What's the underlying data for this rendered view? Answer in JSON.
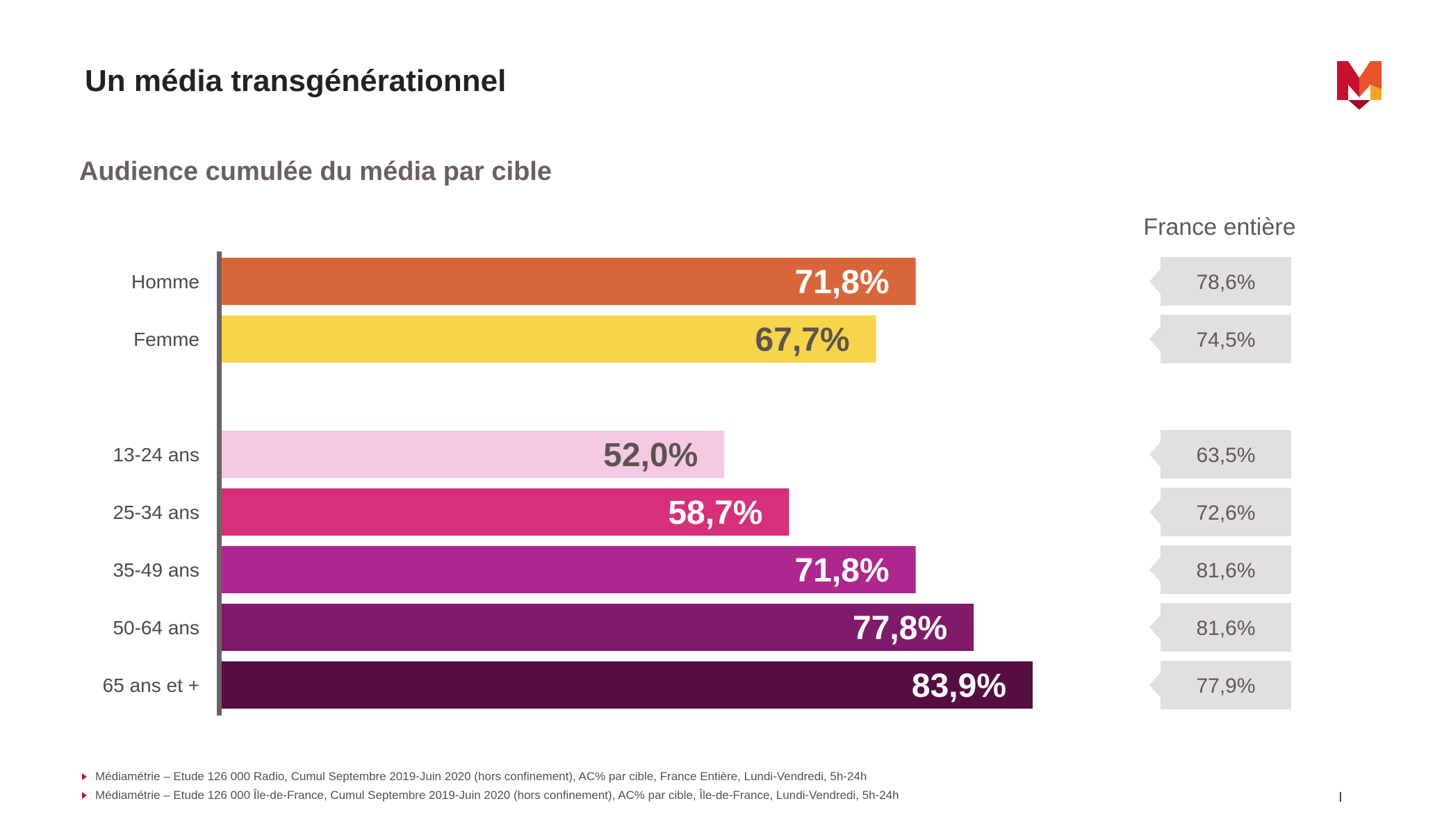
{
  "header": {
    "title": "Un média transgénérationnel",
    "subtitle": "Audience cumulée du média par cible",
    "logo_icon": "m-logo-icon",
    "logo_colors": [
      "#c8102e",
      "#e8532b",
      "#f4a623"
    ]
  },
  "france_entiere": {
    "header": "France entière"
  },
  "chart_data": {
    "type": "bar",
    "orientation": "horizontal",
    "title": "Audience cumulée du média par cible",
    "categories": [
      "Homme",
      "Femme",
      "13-24 ans",
      "25-34 ans",
      "35-49 ans",
      "50-64 ans",
      "65 ans et +"
    ],
    "series": [
      {
        "name": "Audience cumulée",
        "values": [
          71.8,
          67.7,
          52.0,
          58.7,
          71.8,
          77.8,
          83.9
        ],
        "labels": [
          "71,8%",
          "67,7%",
          "52,0%",
          "58,7%",
          "71,8%",
          "77,8%",
          "83,9%"
        ],
        "colors": [
          "#d9663b",
          "#f7d54a",
          "#f5c9e2",
          "#d6307a",
          "#ad278e",
          "#801b6b",
          "#560d42"
        ],
        "label_colors": [
          "#ffffff",
          "#5b5454",
          "#5b5454",
          "#ffffff",
          "#ffffff",
          "#ffffff",
          "#ffffff"
        ]
      },
      {
        "name": "France entière",
        "values": [
          78.6,
          74.5,
          63.5,
          72.6,
          81.6,
          81.6,
          77.9
        ],
        "labels": [
          "78,6%",
          "74,5%",
          "63,5%",
          "72,6%",
          "81,6%",
          "81,6%",
          "77,9%"
        ]
      }
    ],
    "groups": [
      [
        "Homme",
        "Femme"
      ],
      [
        "13-24 ans",
        "25-34 ans",
        "35-49 ans",
        "50-64 ans",
        "65 ans et +"
      ]
    ],
    "xlim": [
      0,
      100
    ],
    "grid": false,
    "legend": "none"
  },
  "footnotes": [
    "Médiamétrie – Etude 126 000 Radio, Cumul Septembre 2019-Juin 2020 (hors confinement), AC% par cible, France Entière, Lundi-Vendredi, 5h-24h",
    "Médiamétrie – Etude 126 000 Île-de-France, Cumul Septembre 2019-Juin 2020 (hors confinement), AC% par cible, Île-de-France, Lundi-Vendredi, 5h-24h"
  ]
}
